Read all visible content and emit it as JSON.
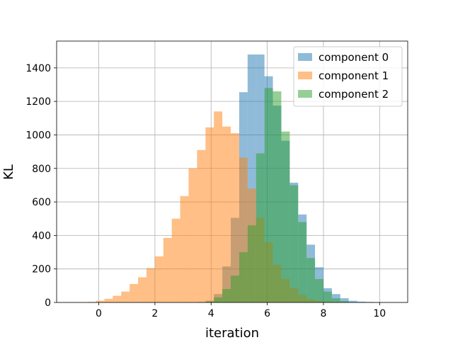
{
  "chart_data": {
    "type": "histogram",
    "title": "",
    "xlabel": "iteration",
    "ylabel": "KL",
    "xlim": [
      -1.5,
      11
    ],
    "ylim": [
      0,
      1560
    ],
    "xticks": [
      0,
      2,
      4,
      6,
      8,
      10
    ],
    "yticks": [
      0,
      200,
      400,
      600,
      800,
      1000,
      1200,
      1400
    ],
    "grid": true,
    "legend_position": "top-right",
    "series": [
      {
        "name": "component 0",
        "color": "#1f77b4",
        "opacity": 0.5,
        "bin_edges": [
          3.5,
          3.8,
          4.1,
          4.4,
          4.7,
          5.0,
          5.3,
          5.6,
          5.9,
          6.2,
          6.5,
          6.8,
          7.1,
          7.4,
          7.7,
          8.0,
          8.3,
          8.6,
          8.9,
          9.2,
          9.5,
          9.8,
          10.1,
          10.4,
          10.7
        ],
        "counts": [
          3,
          10,
          50,
          215,
          505,
          1255,
          1480,
          1480,
          1350,
          1175,
          965,
          715,
          525,
          345,
          210,
          85,
          50,
          25,
          10,
          5,
          3,
          2,
          1,
          1
        ]
      },
      {
        "name": "component 1",
        "color": "#ff7f0e",
        "opacity": 0.5,
        "bin_edges": [
          -0.4,
          -0.1,
          0.2,
          0.5,
          0.8,
          1.1,
          1.4,
          1.7,
          2.0,
          2.3,
          2.6,
          2.9,
          3.2,
          3.5,
          3.8,
          4.1,
          4.4,
          4.7,
          5.0,
          5.3,
          5.6,
          5.9,
          6.2,
          6.5,
          6.8,
          7.1,
          7.4,
          7.7,
          8.0,
          8.3,
          8.6
        ],
        "counts": [
          3,
          10,
          22,
          40,
          65,
          110,
          150,
          205,
          275,
          385,
          500,
          635,
          800,
          910,
          1045,
          1140,
          1050,
          1010,
          865,
          680,
          505,
          360,
          225,
          140,
          85,
          45,
          20,
          10,
          5,
          2
        ]
      },
      {
        "name": "component 2",
        "color": "#2ca02c",
        "opacity": 0.5,
        "bin_edges": [
          3.8,
          4.1,
          4.4,
          4.7,
          5.0,
          5.3,
          5.6,
          5.9,
          6.2,
          6.5,
          6.8,
          7.1,
          7.4,
          7.7,
          8.0,
          8.3,
          8.6,
          8.9,
          9.2
        ],
        "counts": [
          5,
          30,
          80,
          160,
          300,
          460,
          890,
          1280,
          1260,
          1020,
          700,
          480,
          265,
          140,
          65,
          25,
          8,
          2
        ]
      }
    ]
  }
}
